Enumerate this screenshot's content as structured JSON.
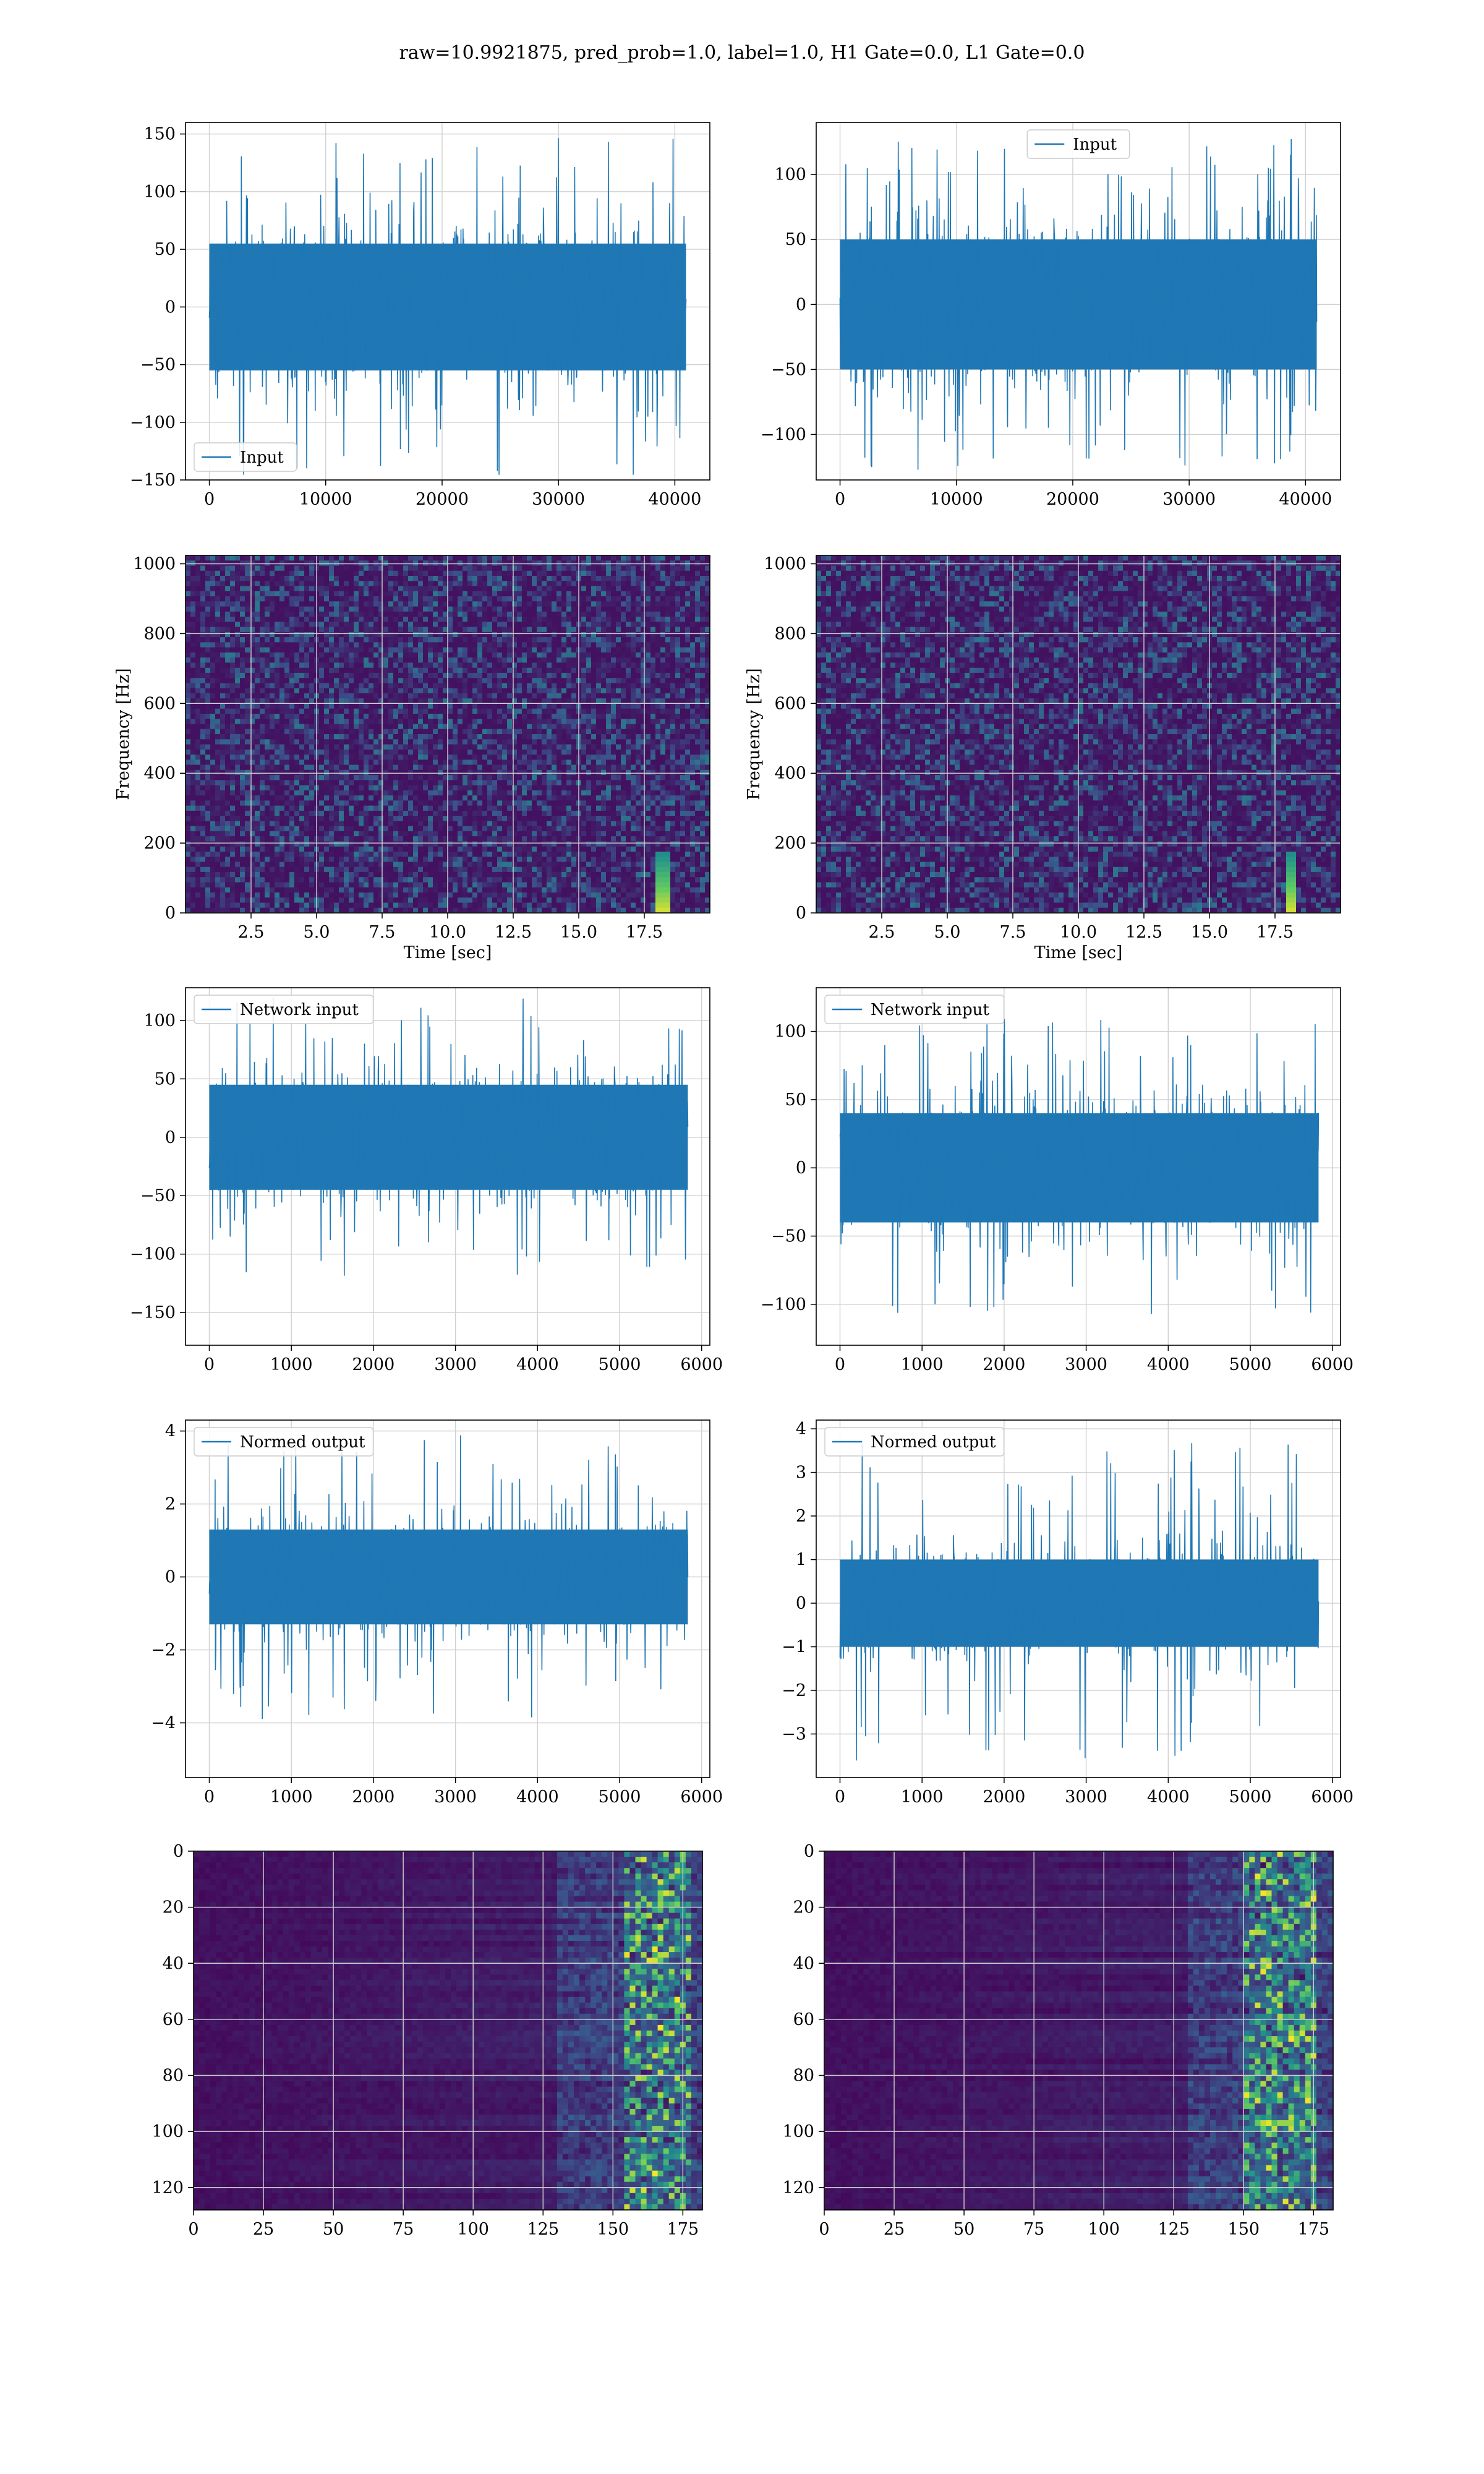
{
  "figure": {
    "suptitle": "raw=10.9921875, pred_prob=1.0, label=1.0, H1 Gate=0.0, L1 Gate=0.0"
  },
  "colors": {
    "line": "#1f77b4",
    "grid": "#d0d0d0",
    "viridis_low": "#440154",
    "viridis_mid": "#21918c",
    "viridis_high": "#fde725"
  },
  "chart_data": [
    {
      "id": "input-h1",
      "type": "line",
      "series": [
        {
          "name": "Input",
          "values_note": ""
        }
      ],
      "xlim": [
        -2048,
        43008
      ],
      "ylim": [
        -150,
        160
      ],
      "xticks": [
        0,
        10000,
        20000,
        30000,
        40000
      ],
      "yticks": [
        -150,
        -100,
        -50,
        0,
        50,
        100,
        150
      ],
      "envelope": {
        "x_max": 40960,
        "core": 55,
        "peak": 150
      },
      "legend_label": "Input",
      "legend": "lower-left",
      "grid": true,
      "xlabel": "",
      "ylabel": ""
    },
    {
      "id": "input-l1",
      "type": "line",
      "series": [
        {
          "name": "Input"
        }
      ],
      "xlim": [
        -2048,
        43008
      ],
      "ylim": [
        -135,
        140
      ],
      "xticks": [
        0,
        10000,
        20000,
        30000,
        40000
      ],
      "yticks": [
        -100,
        -50,
        0,
        50,
        100
      ],
      "envelope": {
        "x_max": 40960,
        "core": 50,
        "peak": 128
      },
      "legend_label": "Input",
      "legend": "upper-center",
      "grid": true,
      "xlabel": "",
      "ylabel": ""
    },
    {
      "id": "spec-h1",
      "type": "heatmap",
      "xlim": [
        0,
        20
      ],
      "ylim": [
        0,
        1024
      ],
      "xticks": [
        2.5,
        5.0,
        7.5,
        10.0,
        12.5,
        15.0,
        17.5
      ],
      "yticks": [
        0,
        200,
        400,
        600,
        800,
        1000
      ],
      "xtick_labels": [
        "2.5",
        "5.0",
        "7.5",
        "10.0",
        "12.5",
        "15.0",
        "17.5"
      ],
      "xlabel": "Time [sec]",
      "ylabel": "Frequency [Hz]",
      "grid": true,
      "chirp_t": 18.2
    },
    {
      "id": "spec-l1",
      "type": "heatmap",
      "xlim": [
        0,
        20
      ],
      "ylim": [
        0,
        1024
      ],
      "xticks": [
        2.5,
        5.0,
        7.5,
        10.0,
        12.5,
        15.0,
        17.5
      ],
      "yticks": [
        0,
        200,
        400,
        600,
        800,
        1000
      ],
      "xtick_labels": [
        "2.5",
        "5.0",
        "7.5",
        "10.0",
        "12.5",
        "15.0",
        "17.5"
      ],
      "xlabel": "Time [sec]",
      "ylabel": "Frequency [Hz]",
      "grid": true,
      "chirp_t": 18.1
    },
    {
      "id": "net-h1",
      "type": "line",
      "series": [
        {
          "name": "Network input"
        }
      ],
      "xlim": [
        -290,
        6100
      ],
      "ylim": [
        -178,
        128
      ],
      "xticks": [
        0,
        1000,
        2000,
        3000,
        4000,
        5000,
        6000
      ],
      "yticks": [
        -150,
        -100,
        -50,
        0,
        50,
        100
      ],
      "envelope": {
        "x_max": 5832,
        "core": 45,
        "peak": 120
      },
      "legend_label": "Network input",
      "legend": "upper-left",
      "grid": true,
      "xlabel": "",
      "ylabel": ""
    },
    {
      "id": "net-l1",
      "type": "line",
      "series": [
        {
          "name": "Network input"
        }
      ],
      "xlim": [
        -290,
        6100
      ],
      "ylim": [
        -130,
        132
      ],
      "xticks": [
        0,
        1000,
        2000,
        3000,
        4000,
        5000,
        6000
      ],
      "yticks": [
        -100,
        -50,
        0,
        50,
        100
      ],
      "envelope": {
        "x_max": 5832,
        "core": 40,
        "peak": 110
      },
      "legend_label": "Network input",
      "legend": "upper-left",
      "grid": true,
      "xlabel": "",
      "ylabel": ""
    },
    {
      "id": "norm-h1",
      "type": "line",
      "series": [
        {
          "name": "Normed output"
        }
      ],
      "xlim": [
        -290,
        6100
      ],
      "ylim": [
        -5.5,
        4.3
      ],
      "xticks": [
        0,
        1000,
        2000,
        3000,
        4000,
        5000,
        6000
      ],
      "yticks": [
        -4,
        -2,
        0,
        2,
        4
      ],
      "envelope": {
        "x_max": 5832,
        "core": 1.3,
        "peak": 3.9
      },
      "legend_label": "Normed output",
      "legend": "upper-left",
      "grid": true,
      "xlabel": "",
      "ylabel": ""
    },
    {
      "id": "norm-l1",
      "type": "line",
      "series": [
        {
          "name": "Normed output"
        }
      ],
      "xlim": [
        -290,
        6100
      ],
      "ylim": [
        -4,
        4.2
      ],
      "xticks": [
        0,
        1000,
        2000,
        3000,
        4000,
        5000,
        6000
      ],
      "yticks": [
        -3,
        -2,
        -1,
        0,
        1,
        2,
        3,
        4
      ],
      "envelope": {
        "x_max": 5832,
        "core": 1.0,
        "peak": 3.7
      },
      "legend_label": "Normed output",
      "legend": "upper-left",
      "grid": true,
      "xlabel": "",
      "ylabel": ""
    },
    {
      "id": "feat-h1",
      "type": "heatmap",
      "xlim": [
        0,
        182
      ],
      "ylim": [
        128,
        0
      ],
      "xticks": [
        0,
        25,
        50,
        75,
        100,
        125,
        150,
        175
      ],
      "yticks": [
        0,
        20,
        40,
        60,
        80,
        100,
        120
      ],
      "xlabel": "",
      "ylabel": "",
      "grid": true,
      "hot_range": [
        155,
        178
      ]
    },
    {
      "id": "feat-l1",
      "type": "heatmap",
      "xlim": [
        0,
        182
      ],
      "ylim": [
        128,
        0
      ],
      "xticks": [
        0,
        25,
        50,
        75,
        100,
        125,
        150,
        175
      ],
      "yticks": [
        0,
        20,
        40,
        60,
        80,
        100,
        120
      ],
      "xlabel": "",
      "ylabel": "",
      "grid": true,
      "hot_range": [
        150,
        175
      ]
    }
  ]
}
